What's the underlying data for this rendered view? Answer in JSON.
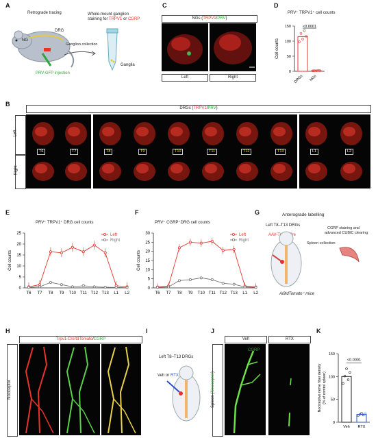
{
  "panels": {
    "A": {
      "letter": "A",
      "title_tracing": "Retrograde tracing",
      "drg": "DRG",
      "ng": "NG",
      "injection": "PRV-GFP injection",
      "collection": "Ganglion collection",
      "stain1": "Whole-mount ganglion",
      "stain2": "staining for",
      "stain_trpv1": "TRPV1",
      "stain_or": "or",
      "stain_cgrp": "CGRP",
      "ganglia": "Ganglia"
    },
    "B": {
      "letter": "B",
      "title_pre": "DRGs (",
      "title_trpv1": "TRPV1",
      "title_sep": "/",
      "title_prv": "PRV",
      "title_post": ")",
      "left": "Left",
      "right": "Right",
      "segments": [
        "T6",
        "T7",
        "T8",
        "T9",
        "T10",
        "T11",
        "T12",
        "T13",
        "L1",
        "L2"
      ]
    },
    "C": {
      "letter": "C",
      "title_pre": "NGs (",
      "title_trpv1": "TRPV1",
      "title_sep": "/",
      "title_prv": "PRV",
      "title_post": ")",
      "left": "Left",
      "right": "Right"
    },
    "D": {
      "letter": "D",
      "title": "PRV⁺ TRPV1⁺ cell counts",
      "ylabel": "Cell counts",
      "pval": "<0.0001",
      "categories": [
        "DRGs",
        "NGs"
      ],
      "yticks": [
        "0",
        "50",
        "100",
        "150"
      ]
    },
    "E": {
      "letter": "E",
      "title": "PRV⁺ TRPV1⁺ DRG cell counts",
      "ylabel": "Cell counts",
      "legend_left": "Left",
      "legend_right": "Right",
      "yticks": [
        "0",
        "5",
        "10",
        "15",
        "20",
        "25"
      ]
    },
    "F": {
      "letter": "F",
      "title": "PRV⁺ CGRP⁺DRG cell counts",
      "ylabel": "Cell counts",
      "legend_left": "Left",
      "legend_right": "Right",
      "yticks": [
        "0",
        "5",
        "10",
        "15",
        "20",
        "25",
        "30"
      ]
    },
    "G": {
      "letter": "G",
      "title": "Anterograde labelling",
      "drgs": "Left T8–T13 DRGs",
      "aav": "AAV-Trpv1-Cre",
      "spleen": "Spleen collection",
      "cgrp1": "CGRP staining and",
      "cgrp2": "advanced CUBIC clearing",
      "mice": "tdTomato⁺ mice",
      "mice_prefix": "Ai9"
    },
    "H": {
      "letter": "H",
      "title_trpv1": "Trpv1-Cre/tdTomato",
      "title_sep": "/",
      "title_cgrp": "CGRP",
      "side": "Nociceptor"
    },
    "I": {
      "letter": "I",
      "drgs": "Left T8–T13 DRGs",
      "veh": "Veh",
      "or": "or",
      "rtx": "RTX"
    },
    "J": {
      "letter": "J",
      "veh": "Veh",
      "rtx": "RTX",
      "cgrp": "CGRP",
      "side_pre": "Spleen (",
      "side_noc": "Nociceptor",
      "side_post": ")"
    },
    "K": {
      "letter": "K",
      "pval": "<0.0001",
      "ylabel1": "Nociceptive nerve fiber density",
      "ylabel2": "(% of control spleen)",
      "categories": [
        "Veh",
        "RTX"
      ],
      "yticks": [
        "0",
        "50",
        "100",
        "150"
      ]
    }
  },
  "chart_data": [
    {
      "type": "bar",
      "title": "PRV⁺ TRPV1⁺ cell counts",
      "categories": [
        "DRGs",
        "NGs"
      ],
      "values": [
        115,
        2
      ],
      "ylim": [
        0,
        150
      ],
      "ylabel": "Cell counts"
    },
    {
      "type": "line",
      "title": "PRV⁺ TRPV1⁺ DRG cell counts",
      "x": [
        "T6",
        "T7",
        "T8",
        "T9",
        "T10",
        "T11",
        "T12",
        "T13",
        "L1",
        "L2"
      ],
      "series": [
        {
          "name": "Left",
          "values": [
            0.5,
            1.5,
            16.5,
            16,
            18.5,
            16.5,
            19.5,
            16,
            1,
            0.5
          ]
        },
        {
          "name": "Right",
          "values": [
            0.2,
            0.5,
            2.5,
            1.5,
            0.5,
            1,
            0.5,
            0.3,
            0.2,
            0.1
          ]
        }
      ],
      "ylim": [
        0,
        25
      ],
      "ylabel": "Cell counts"
    },
    {
      "type": "line",
      "title": "PRV⁺ CGRP⁺DRG cell counts",
      "x": [
        "T6",
        "T7",
        "T8",
        "T9",
        "T10",
        "T11",
        "T12",
        "T13",
        "L1",
        "L2"
      ],
      "series": [
        {
          "name": "Left",
          "values": [
            0.5,
            1,
            22,
            25,
            24.5,
            25.5,
            20.5,
            21,
            1,
            0.5
          ]
        },
        {
          "name": "Right",
          "values": [
            0.3,
            0.5,
            4,
            4.5,
            5.5,
            4.5,
            2.5,
            2,
            0.5,
            0.3
          ]
        }
      ],
      "ylim": [
        0,
        30
      ],
      "ylabel": "Cell counts"
    },
    {
      "type": "bar",
      "title": "",
      "categories": [
        "Veh",
        "RTX"
      ],
      "values": [
        100,
        17
      ],
      "ylim": [
        0,
        150
      ],
      "ylabel": "Nociceptive nerve fiber density (% of control spleen)"
    }
  ],
  "colors": {
    "red": "#e8332b",
    "grey": "#777777",
    "green": "#2fa83a"
  }
}
